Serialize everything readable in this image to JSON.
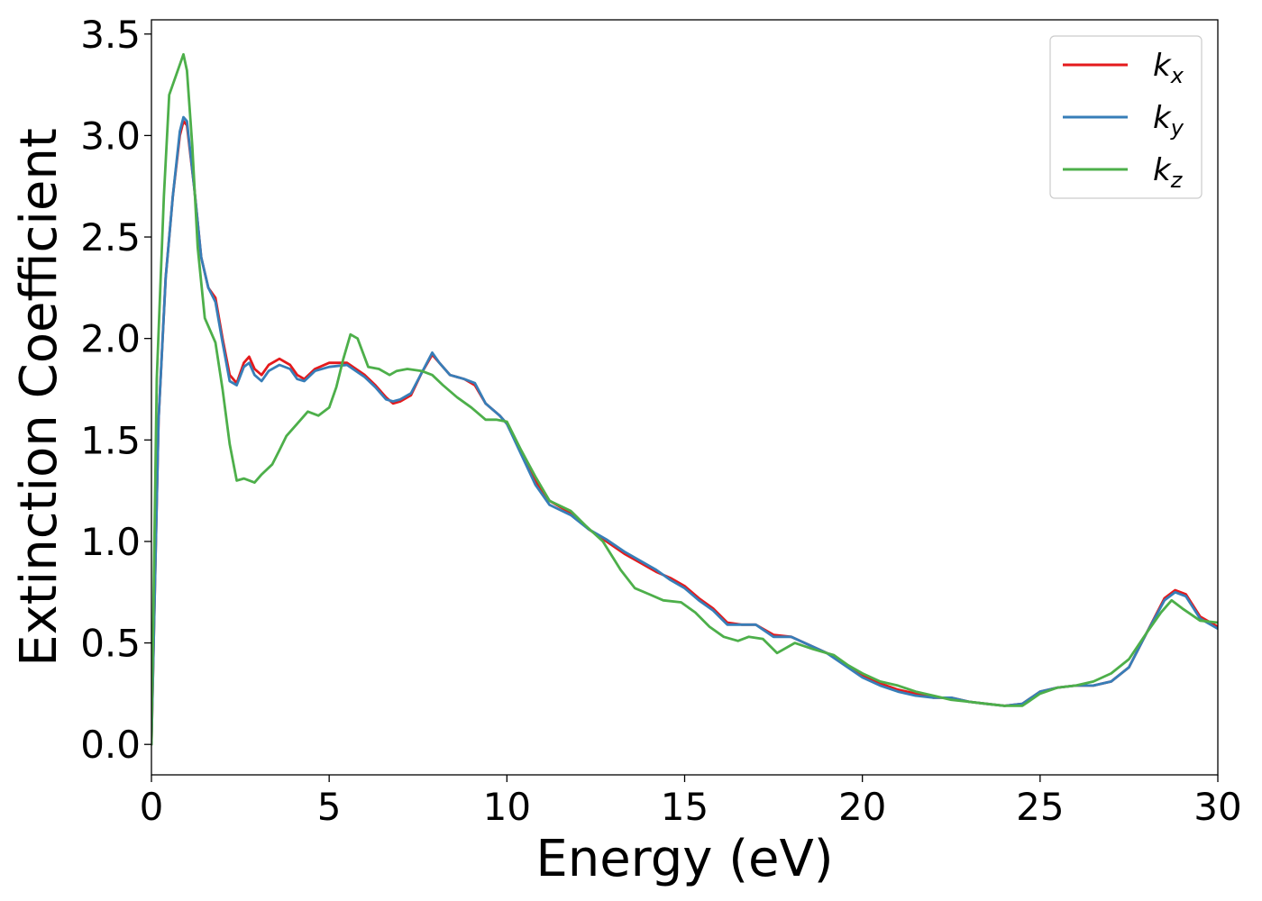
{
  "chart_data": {
    "type": "line",
    "xlabel": "Energy (eV)",
    "ylabel": "Extinction Coefficient",
    "xlim": [
      0,
      30
    ],
    "ylim": [
      -0.15,
      3.57
    ],
    "xticks": [
      0,
      5,
      10,
      15,
      20,
      25,
      30
    ],
    "yticks": [
      0.0,
      0.5,
      1.0,
      1.5,
      2.0,
      2.5,
      3.0,
      3.5
    ],
    "xtick_labels": [
      "0",
      "5",
      "10",
      "15",
      "20",
      "25",
      "30"
    ],
    "ytick_labels": [
      "0.0",
      "0.5",
      "1.0",
      "1.5",
      "2.0",
      "2.5",
      "3.0",
      "3.5"
    ],
    "grid": false,
    "legend_position": "top-right",
    "series": [
      {
        "name": "kx",
        "label_base": "k",
        "label_sub": "x",
        "color": "#e41a1c",
        "points": [
          [
            0,
            0
          ],
          [
            0.2,
            1.6
          ],
          [
            0.4,
            2.3
          ],
          [
            0.6,
            2.7
          ],
          [
            0.8,
            3.0
          ],
          [
            0.9,
            3.07
          ],
          [
            1.0,
            3.05
          ],
          [
            1.2,
            2.75
          ],
          [
            1.4,
            2.4
          ],
          [
            1.6,
            2.25
          ],
          [
            1.8,
            2.2
          ],
          [
            2.0,
            2.0
          ],
          [
            2.2,
            1.82
          ],
          [
            2.4,
            1.78
          ],
          [
            2.6,
            1.88
          ],
          [
            2.75,
            1.91
          ],
          [
            2.9,
            1.85
          ],
          [
            3.1,
            1.82
          ],
          [
            3.3,
            1.87
          ],
          [
            3.6,
            1.9
          ],
          [
            3.9,
            1.87
          ],
          [
            4.1,
            1.82
          ],
          [
            4.3,
            1.8
          ],
          [
            4.6,
            1.85
          ],
          [
            5.0,
            1.88
          ],
          [
            5.5,
            1.88
          ],
          [
            6.0,
            1.82
          ],
          [
            6.3,
            1.77
          ],
          [
            6.6,
            1.71
          ],
          [
            6.8,
            1.68
          ],
          [
            7.0,
            1.69
          ],
          [
            7.3,
            1.72
          ],
          [
            7.6,
            1.83
          ],
          [
            7.9,
            1.92
          ],
          [
            8.1,
            1.88
          ],
          [
            8.4,
            1.82
          ],
          [
            8.8,
            1.8
          ],
          [
            9.1,
            1.77
          ],
          [
            9.4,
            1.68
          ],
          [
            9.8,
            1.62
          ],
          [
            10.0,
            1.58
          ],
          [
            10.4,
            1.44
          ],
          [
            10.8,
            1.3
          ],
          [
            11.2,
            1.2
          ],
          [
            11.8,
            1.14
          ],
          [
            12.3,
            1.06
          ],
          [
            12.8,
            1.0
          ],
          [
            13.3,
            0.94
          ],
          [
            13.8,
            0.89
          ],
          [
            14.2,
            0.85
          ],
          [
            14.6,
            0.82
          ],
          [
            15.0,
            0.78
          ],
          [
            15.4,
            0.72
          ],
          [
            15.8,
            0.67
          ],
          [
            16.2,
            0.6
          ],
          [
            16.6,
            0.59
          ],
          [
            17.0,
            0.59
          ],
          [
            17.5,
            0.54
          ],
          [
            18.0,
            0.53
          ],
          [
            18.5,
            0.49
          ],
          [
            19.0,
            0.45
          ],
          [
            19.5,
            0.4
          ],
          [
            20.0,
            0.34
          ],
          [
            20.5,
            0.3
          ],
          [
            21.0,
            0.27
          ],
          [
            21.5,
            0.25
          ],
          [
            22.0,
            0.23
          ],
          [
            22.5,
            0.23
          ],
          [
            23.0,
            0.21
          ],
          [
            23.5,
            0.2
          ],
          [
            24.0,
            0.19
          ],
          [
            24.5,
            0.2
          ],
          [
            25.0,
            0.26
          ],
          [
            25.5,
            0.28
          ],
          [
            26.0,
            0.29
          ],
          [
            26.5,
            0.29
          ],
          [
            27.0,
            0.31
          ],
          [
            27.5,
            0.38
          ],
          [
            28.0,
            0.55
          ],
          [
            28.5,
            0.72
          ],
          [
            28.8,
            0.76
          ],
          [
            29.1,
            0.74
          ],
          [
            29.5,
            0.63
          ],
          [
            30.0,
            0.58
          ]
        ]
      },
      {
        "name": "ky",
        "label_base": "k",
        "label_sub": "y",
        "color": "#377eb8",
        "points": [
          [
            0,
            0
          ],
          [
            0.2,
            1.6
          ],
          [
            0.4,
            2.3
          ],
          [
            0.6,
            2.7
          ],
          [
            0.8,
            3.02
          ],
          [
            0.9,
            3.09
          ],
          [
            1.0,
            3.07
          ],
          [
            1.2,
            2.75
          ],
          [
            1.4,
            2.4
          ],
          [
            1.6,
            2.25
          ],
          [
            1.8,
            2.18
          ],
          [
            2.0,
            1.98
          ],
          [
            2.2,
            1.79
          ],
          [
            2.4,
            1.77
          ],
          [
            2.6,
            1.86
          ],
          [
            2.75,
            1.88
          ],
          [
            2.9,
            1.82
          ],
          [
            3.1,
            1.79
          ],
          [
            3.3,
            1.84
          ],
          [
            3.6,
            1.87
          ],
          [
            3.9,
            1.85
          ],
          [
            4.1,
            1.8
          ],
          [
            4.3,
            1.79
          ],
          [
            4.6,
            1.84
          ],
          [
            5.0,
            1.86
          ],
          [
            5.5,
            1.87
          ],
          [
            6.0,
            1.81
          ],
          [
            6.3,
            1.76
          ],
          [
            6.6,
            1.7
          ],
          [
            6.8,
            1.69
          ],
          [
            7.0,
            1.7
          ],
          [
            7.3,
            1.73
          ],
          [
            7.6,
            1.83
          ],
          [
            7.9,
            1.93
          ],
          [
            8.1,
            1.88
          ],
          [
            8.4,
            1.82
          ],
          [
            8.8,
            1.8
          ],
          [
            9.1,
            1.78
          ],
          [
            9.4,
            1.68
          ],
          [
            9.8,
            1.62
          ],
          [
            10.0,
            1.58
          ],
          [
            10.4,
            1.43
          ],
          [
            10.8,
            1.28
          ],
          [
            11.2,
            1.18
          ],
          [
            11.8,
            1.13
          ],
          [
            12.3,
            1.06
          ],
          [
            12.8,
            1.01
          ],
          [
            13.3,
            0.95
          ],
          [
            13.8,
            0.9
          ],
          [
            14.2,
            0.86
          ],
          [
            14.6,
            0.81
          ],
          [
            15.0,
            0.77
          ],
          [
            15.4,
            0.71
          ],
          [
            15.8,
            0.66
          ],
          [
            16.2,
            0.59
          ],
          [
            16.6,
            0.59
          ],
          [
            17.0,
            0.59
          ],
          [
            17.5,
            0.53
          ],
          [
            18.0,
            0.53
          ],
          [
            18.5,
            0.49
          ],
          [
            19.0,
            0.45
          ],
          [
            19.5,
            0.39
          ],
          [
            20.0,
            0.33
          ],
          [
            20.5,
            0.29
          ],
          [
            21.0,
            0.26
          ],
          [
            21.5,
            0.24
          ],
          [
            22.0,
            0.23
          ],
          [
            22.5,
            0.23
          ],
          [
            23.0,
            0.21
          ],
          [
            23.5,
            0.2
          ],
          [
            24.0,
            0.19
          ],
          [
            24.5,
            0.2
          ],
          [
            25.0,
            0.26
          ],
          [
            25.5,
            0.28
          ],
          [
            26.0,
            0.29
          ],
          [
            26.5,
            0.29
          ],
          [
            27.0,
            0.31
          ],
          [
            27.5,
            0.38
          ],
          [
            28.0,
            0.55
          ],
          [
            28.5,
            0.71
          ],
          [
            28.8,
            0.75
          ],
          [
            29.1,
            0.73
          ],
          [
            29.5,
            0.62
          ],
          [
            30.0,
            0.57
          ]
        ]
      },
      {
        "name": "kz",
        "label_base": "k",
        "label_sub": "z",
        "color": "#4daf4a",
        "points": [
          [
            0,
            0
          ],
          [
            0.15,
            1.8
          ],
          [
            0.35,
            2.7
          ],
          [
            0.5,
            3.2
          ],
          [
            0.7,
            3.3
          ],
          [
            0.9,
            3.4
          ],
          [
            1.0,
            3.32
          ],
          [
            1.15,
            2.95
          ],
          [
            1.3,
            2.45
          ],
          [
            1.5,
            2.1
          ],
          [
            1.8,
            1.98
          ],
          [
            2.0,
            1.75
          ],
          [
            2.2,
            1.48
          ],
          [
            2.4,
            1.3
          ],
          [
            2.6,
            1.31
          ],
          [
            2.9,
            1.29
          ],
          [
            3.1,
            1.33
          ],
          [
            3.4,
            1.38
          ],
          [
            3.6,
            1.45
          ],
          [
            3.8,
            1.52
          ],
          [
            4.1,
            1.58
          ],
          [
            4.4,
            1.64
          ],
          [
            4.7,
            1.62
          ],
          [
            5.0,
            1.66
          ],
          [
            5.2,
            1.76
          ],
          [
            5.4,
            1.9
          ],
          [
            5.6,
            2.02
          ],
          [
            5.8,
            2.0
          ],
          [
            6.1,
            1.86
          ],
          [
            6.4,
            1.85
          ],
          [
            6.7,
            1.82
          ],
          [
            6.9,
            1.84
          ],
          [
            7.2,
            1.85
          ],
          [
            7.6,
            1.84
          ],
          [
            7.9,
            1.82
          ],
          [
            8.2,
            1.77
          ],
          [
            8.6,
            1.71
          ],
          [
            9.0,
            1.66
          ],
          [
            9.4,
            1.6
          ],
          [
            9.7,
            1.6
          ],
          [
            10.0,
            1.59
          ],
          [
            10.4,
            1.45
          ],
          [
            10.8,
            1.32
          ],
          [
            11.2,
            1.2
          ],
          [
            11.8,
            1.15
          ],
          [
            12.2,
            1.08
          ],
          [
            12.7,
            1.0
          ],
          [
            13.2,
            0.86
          ],
          [
            13.6,
            0.77
          ],
          [
            14.0,
            0.74
          ],
          [
            14.4,
            0.71
          ],
          [
            14.9,
            0.7
          ],
          [
            15.3,
            0.65
          ],
          [
            15.7,
            0.58
          ],
          [
            16.1,
            0.53
          ],
          [
            16.5,
            0.51
          ],
          [
            16.8,
            0.53
          ],
          [
            17.2,
            0.52
          ],
          [
            17.6,
            0.45
          ],
          [
            18.1,
            0.5
          ],
          [
            18.6,
            0.47
          ],
          [
            19.2,
            0.44
          ],
          [
            19.6,
            0.39
          ],
          [
            20.0,
            0.35
          ],
          [
            20.5,
            0.31
          ],
          [
            21.0,
            0.29
          ],
          [
            21.5,
            0.26
          ],
          [
            22.0,
            0.24
          ],
          [
            22.5,
            0.22
          ],
          [
            23.0,
            0.21
          ],
          [
            23.5,
            0.2
          ],
          [
            24.0,
            0.19
          ],
          [
            24.5,
            0.19
          ],
          [
            25.0,
            0.25
          ],
          [
            25.5,
            0.28
          ],
          [
            26.0,
            0.29
          ],
          [
            26.5,
            0.31
          ],
          [
            27.0,
            0.35
          ],
          [
            27.5,
            0.42
          ],
          [
            28.0,
            0.55
          ],
          [
            28.4,
            0.65
          ],
          [
            28.7,
            0.71
          ],
          [
            29.0,
            0.67
          ],
          [
            29.5,
            0.61
          ],
          [
            30.0,
            0.6
          ]
        ]
      }
    ]
  }
}
